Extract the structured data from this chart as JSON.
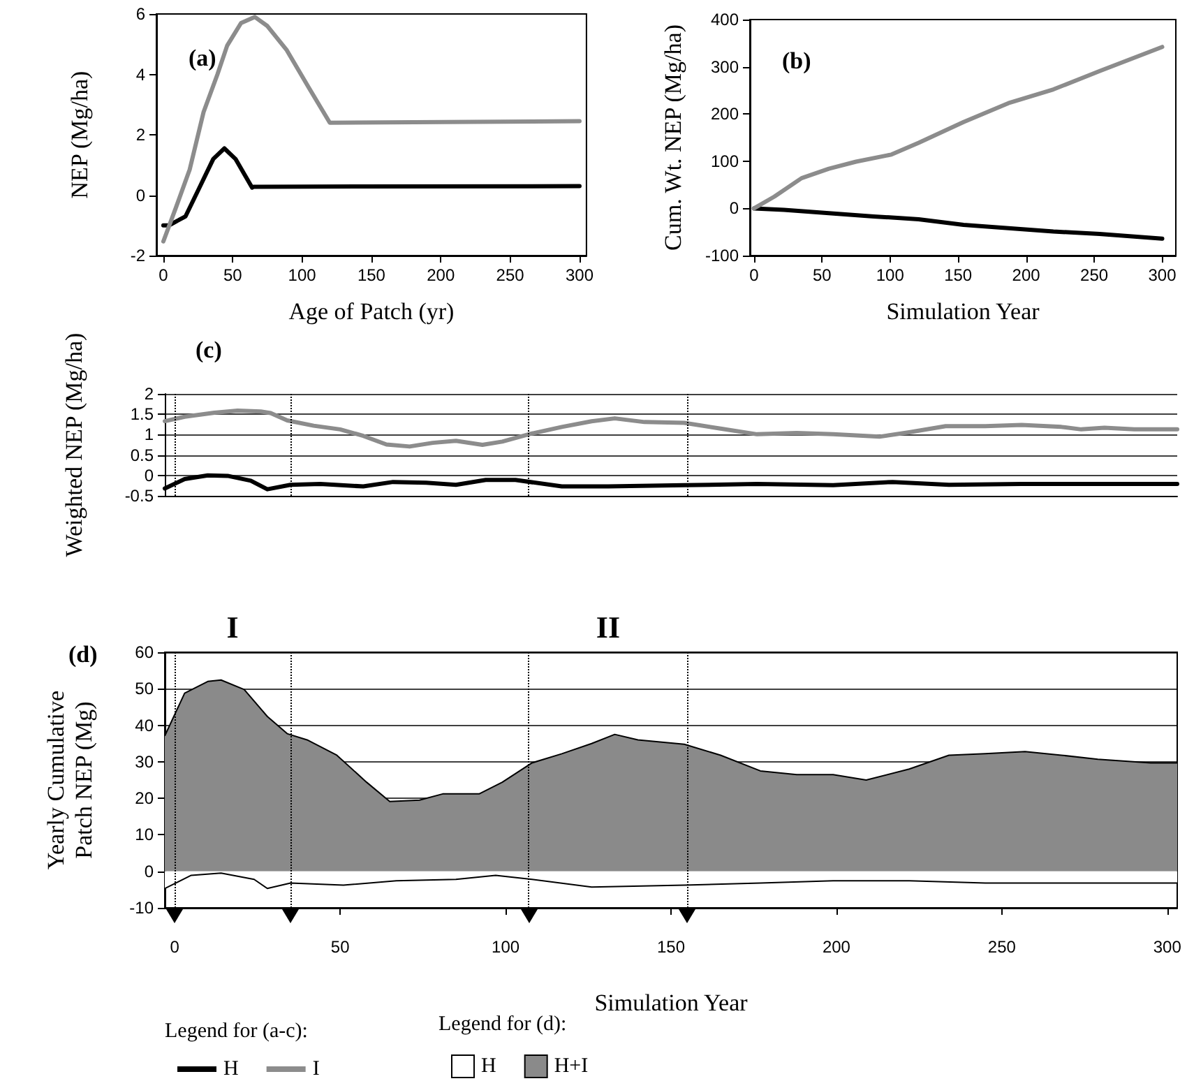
{
  "chart_data": [
    {
      "type": "line",
      "title": "(a)",
      "xlabel": "Age of Patch (yr)",
      "ylabel": "NEP (Mg/ha)",
      "xlim": [
        -5,
        305
      ],
      "xticks": [
        0,
        50,
        100,
        150,
        200,
        250,
        300
      ],
      "ylim": [
        -2,
        6
      ],
      "yticks": [
        -2,
        0,
        2,
        4,
        6
      ],
      "grid": false,
      "series": [
        {
          "color": "#000000",
          "x": [
            0,
            4,
            16,
            26,
            36,
            44,
            52,
            64,
            65,
            300
          ],
          "values": [
            -1.0,
            -1.0,
            -0.7,
            0.25,
            1.2,
            1.55,
            1.2,
            0.25,
            0.28,
            0.3
          ]
        },
        {
          "color": "#8c8c8c",
          "x": [
            0,
            9,
            19,
            29,
            39,
            46,
            56,
            66,
            75,
            89,
            105,
            120,
            300
          ],
          "values": [
            -1.53,
            -0.42,
            0.85,
            2.75,
            4.0,
            4.95,
            5.7,
            5.9,
            5.6,
            4.8,
            3.55,
            2.4,
            2.45
          ]
        }
      ]
    },
    {
      "type": "line",
      "title": "(b)",
      "xlabel": "Simulation Year",
      "ylabel": "Cum. Wt. NEP (Mg/ha)",
      "xlim": [
        -3,
        310
      ],
      "xticks": [
        0,
        50,
        100,
        150,
        200,
        250,
        300
      ],
      "ylim": [
        -100,
        400
      ],
      "yticks": [
        -100,
        0,
        100,
        200,
        300,
        400
      ],
      "grid": false,
      "series": [
        {
          "color": "#000000",
          "x": [
            0,
            22,
            55,
            88,
            121,
            154,
            187,
            220,
            254,
            300
          ],
          "values": [
            0,
            -3,
            -10,
            -17,
            -23,
            -35,
            -42,
            -49,
            -54,
            -64
          ]
        },
        {
          "color": "#8c8c8c",
          "x": [
            0,
            15,
            35,
            55,
            75,
            101,
            121,
            154,
            187,
            220,
            254,
            300
          ],
          "values": [
            0,
            25,
            64,
            84,
            99,
            114,
            139,
            183,
            223,
            252,
            291,
            342
          ]
        }
      ]
    },
    {
      "type": "line",
      "title": "(c)",
      "ylabel": "Weighted NEP (Mg/ha)",
      "xlim": [
        -3,
        303
      ],
      "ylim": [
        -0.5,
        2
      ],
      "yticks": [
        -0.5,
        0,
        0.5,
        1,
        1.5,
        2
      ],
      "grid": "y",
      "tick_labels": "y",
      "legend": "bottom left",
      "legend_title": "Legend for (a-c):",
      "ref_lines": [
        {
          "axis": "x",
          "value": 0,
          "line_style": "dotted"
        },
        {
          "axis": "x",
          "value": 35,
          "line_style": "dotted"
        },
        {
          "axis": "x",
          "value": 107,
          "line_style": "dotted"
        },
        {
          "axis": "x",
          "value": 155,
          "line_style": "dotted"
        }
      ],
      "series": [
        {
          "name": "H",
          "color": "#000000",
          "x": [
            -3,
            3,
            10,
            16,
            23,
            28,
            35,
            44,
            57,
            66,
            76,
            85,
            94,
            103,
            117,
            131,
            154,
            176,
            199,
            217,
            234,
            256,
            279,
            303
          ],
          "values": [
            -0.32,
            -0.09,
            0.0,
            -0.01,
            -0.13,
            -0.34,
            -0.23,
            -0.21,
            -0.27,
            -0.16,
            -0.18,
            -0.23,
            -0.11,
            -0.11,
            -0.27,
            -0.27,
            -0.24,
            -0.21,
            -0.24,
            -0.16,
            -0.23,
            -0.21,
            -0.21,
            -0.21
          ]
        },
        {
          "name": "I",
          "color": "#8c8c8c",
          "x": [
            -3,
            3,
            12,
            19,
            26,
            29,
            34,
            42,
            50,
            57,
            64,
            71,
            78,
            85,
            93,
            99,
            108,
            117,
            126,
            133,
            142,
            154,
            165,
            176,
            188,
            199,
            213,
            222,
            233,
            245,
            256,
            268,
            274,
            281,
            290,
            303
          ],
          "values": [
            1.33,
            1.44,
            1.54,
            1.59,
            1.57,
            1.53,
            1.35,
            1.22,
            1.13,
            0.97,
            0.76,
            0.71,
            0.8,
            0.85,
            0.75,
            0.83,
            1.03,
            1.19,
            1.33,
            1.4,
            1.31,
            1.29,
            1.15,
            1.01,
            1.04,
            1.01,
            0.95,
            1.06,
            1.21,
            1.21,
            1.24,
            1.19,
            1.13,
            1.17,
            1.13,
            1.13
          ]
        }
      ]
    },
    {
      "type": "area",
      "title": "(d)",
      "xlabel": "Simulation Year",
      "ylabel": "Yearly Cumulative Patch NEP (Mg)",
      "xlim": [
        -3,
        303
      ],
      "xticks": [
        0,
        50,
        100,
        150,
        200,
        250,
        300
      ],
      "ylim": [
        -10,
        60
      ],
      "yticks": [
        -10,
        0,
        10,
        20,
        30,
        40,
        50,
        60
      ],
      "grid": "y",
      "legend": "bottom left",
      "legend_title": "Legend for (d):",
      "annotations": [
        "I",
        "II"
      ],
      "ref_lines": [
        {
          "axis": "x",
          "value": 0,
          "line_style": "dotted"
        },
        {
          "axis": "x",
          "value": 35,
          "line_style": "dotted"
        },
        {
          "axis": "x",
          "value": 107,
          "line_style": "dotted"
        },
        {
          "axis": "x",
          "value": 155,
          "line_style": "dotted"
        }
      ],
      "series": [
        {
          "name": "H",
          "color": "#ffffff",
          "x": [
            -3,
            5,
            14,
            24,
            28,
            35,
            51,
            67,
            85,
            97,
            108,
            126,
            154,
            177,
            199,
            222,
            245,
            268,
            303
          ],
          "values": [
            -4.7,
            -1.1,
            -0.5,
            -2.2,
            -4.7,
            -3.2,
            -3.8,
            -2.6,
            -2.2,
            -1.1,
            -2.2,
            -4.3,
            -3.8,
            -3.2,
            -2.6,
            -2.6,
            -3.2,
            -3.2,
            -3.2
          ]
        },
        {
          "name": "H+I",
          "color": "#8a8a8a",
          "x": [
            -3,
            3,
            10,
            14,
            21,
            28,
            34,
            40,
            49,
            58,
            65,
            74,
            81,
            92,
            99,
            108,
            117,
            126,
            133,
            140,
            154,
            165,
            177,
            188,
            199,
            209,
            222,
            234,
            245,
            257,
            268,
            279,
            295,
            303
          ],
          "values": [
            37.1,
            48.8,
            52,
            52.4,
            49.8,
            42.4,
            37.7,
            36,
            31.8,
            24.4,
            19.1,
            19.5,
            21.2,
            21.2,
            24.4,
            29.7,
            32.2,
            35,
            37.5,
            36,
            34.8,
            31.8,
            27.5,
            26.5,
            26.5,
            25,
            28,
            31.8,
            32.2,
            32.8,
            31.8,
            30.7,
            29.7,
            29.7
          ]
        }
      ]
    }
  ]
}
